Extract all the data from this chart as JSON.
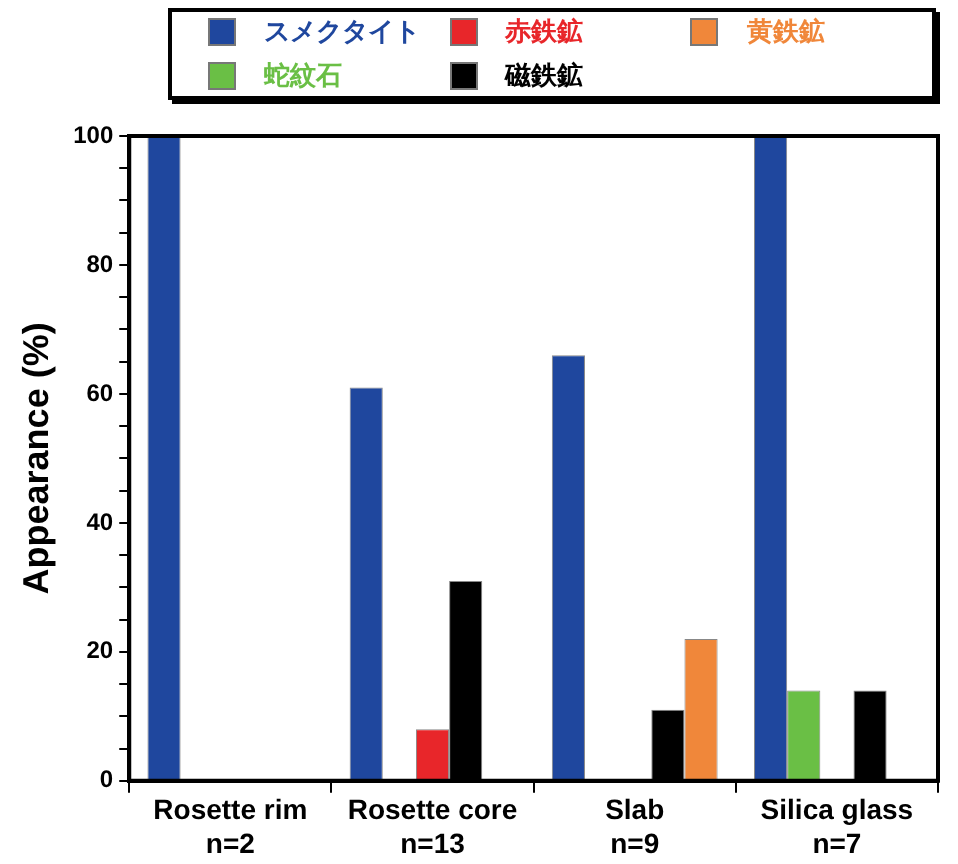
{
  "chart_data": {
    "type": "bar",
    "ylabel": "Appearance (%)",
    "categories": [
      "Rosette rim\nn=2",
      "Rosette core\nn=13",
      "Slab\nn=9",
      "Silica glass\nn=7"
    ],
    "series": [
      {
        "name": "スメクタイト",
        "color": "#1f479e",
        "values": [
          100,
          61,
          66,
          100
        ]
      },
      {
        "name": "蛇紋石",
        "color": "#6abf45",
        "values": [
          0,
          0,
          0,
          14
        ]
      },
      {
        "name": "赤鉄鉱",
        "color": "#e8262a",
        "values": [
          0,
          8,
          0,
          0
        ]
      },
      {
        "name": "磁鉄鉱",
        "color": "#000000",
        "values": [
          0,
          31,
          11,
          14
        ]
      },
      {
        "name": "黄鉄鉱",
        "color": "#f0873a",
        "values": [
          0,
          0,
          22,
          0
        ]
      }
    ],
    "ylim": [
      0,
      100
    ],
    "yticks": [
      0,
      {
        "value": 5,
        "label": null
      },
      {
        "value": 10,
        "label": null
      },
      {
        "value": 15,
        "label": null
      },
      20,
      {
        "value": 25,
        "label": null
      },
      {
        "value": 30,
        "label": null
      },
      {
        "value": 35,
        "label": null
      },
      40,
      {
        "value": 45,
        "label": null
      },
      {
        "value": 50,
        "label": null
      },
      {
        "value": 55,
        "label": null
      },
      60,
      {
        "value": 65,
        "label": null
      },
      {
        "value": 70,
        "label": null
      },
      {
        "value": 75,
        "label": null
      },
      80,
      {
        "value": 85,
        "label": null
      },
      {
        "value": 90,
        "label": null
      },
      {
        "value": 95,
        "label": null
      },
      100
    ],
    "grid": false,
    "legend": "top"
  }
}
